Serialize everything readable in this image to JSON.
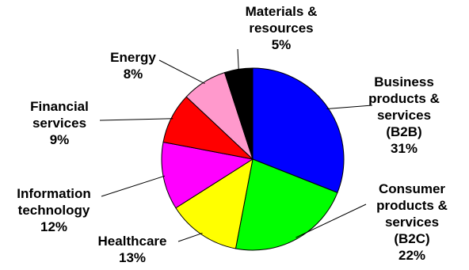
{
  "chart_data": {
    "type": "pie",
    "title": "",
    "start": "12 o'clock, clockwise",
    "slices": [
      {
        "label_lines": [
          "Business",
          "products &",
          "services",
          "(B2B)"
        ],
        "pct_text": "31%",
        "value": 31,
        "color": "#0000ff"
      },
      {
        "label_lines": [
          "Consumer",
          "products &",
          "services",
          "(B2C)"
        ],
        "pct_text": "22%",
        "value": 22,
        "color": "#00ff00"
      },
      {
        "label_lines": [
          "Healthcare"
        ],
        "pct_text": "13%",
        "value": 13,
        "color": "#ffff00"
      },
      {
        "label_lines": [
          "Information",
          "technology"
        ],
        "pct_text": "12%",
        "value": 12,
        "color": "#ff00ff"
      },
      {
        "label_lines": [
          "Financial",
          "services"
        ],
        "pct_text": "9%",
        "value": 9,
        "color": "#ff0000"
      },
      {
        "label_lines": [
          "Energy"
        ],
        "pct_text": "8%",
        "value": 8,
        "color": "#ff99cc"
      },
      {
        "label_lines": [
          "Materials &",
          "resources"
        ],
        "pct_text": "5%",
        "value": 5,
        "color": "#000000"
      }
    ]
  }
}
